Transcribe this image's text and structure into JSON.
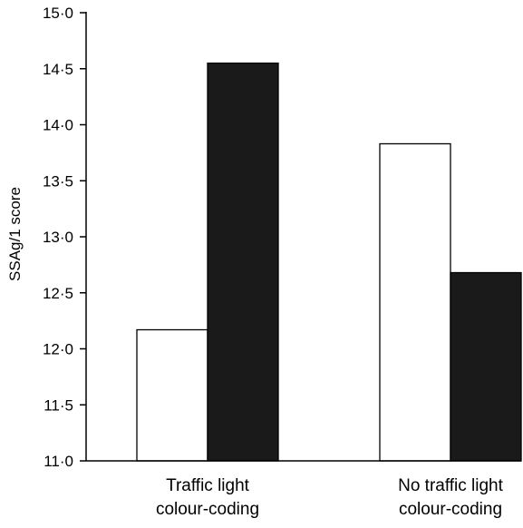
{
  "chart_data": {
    "type": "bar",
    "title": "",
    "xlabel": "",
    "ylabel": "SSAg/1 score",
    "ylim": [
      11.0,
      15.0
    ],
    "yticks": [
      {
        "value": 11.0,
        "label": "11·0"
      },
      {
        "value": 11.5,
        "label": "11·5"
      },
      {
        "value": 12.0,
        "label": "12·0"
      },
      {
        "value": 12.5,
        "label": "12·5"
      },
      {
        "value": 13.0,
        "label": "13·0"
      },
      {
        "value": 13.5,
        "label": "13·5"
      },
      {
        "value": 14.0,
        "label": "14·0"
      },
      {
        "value": 14.5,
        "label": "14·5"
      },
      {
        "value": 15.0,
        "label": "15·0"
      }
    ],
    "categories": [
      {
        "line1": "Traffic light",
        "line2": "colour-coding"
      },
      {
        "line1": "No traffic light",
        "line2": "colour-coding"
      }
    ],
    "series": [
      {
        "fill": "#ffffff",
        "values": [
          12.17,
          13.83
        ]
      },
      {
        "fill": "#1a1a1a",
        "values": [
          14.55,
          12.68
        ]
      }
    ],
    "grid": false,
    "legend": "none"
  }
}
